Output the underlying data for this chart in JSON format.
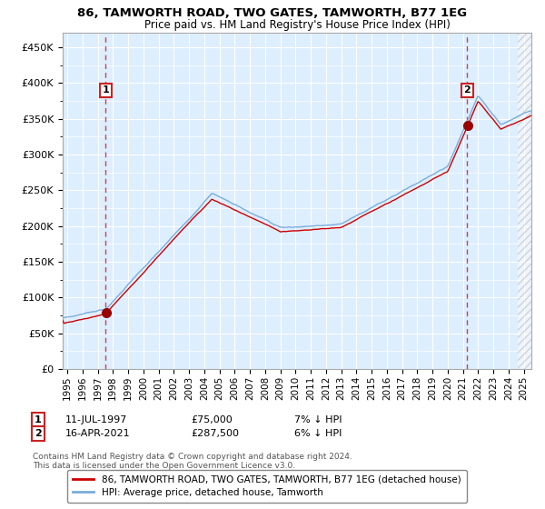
{
  "title": "86, TAMWORTH ROAD, TWO GATES, TAMWORTH, B77 1EG",
  "subtitle": "Price paid vs. HM Land Registry's House Price Index (HPI)",
  "legend_line1": "86, TAMWORTH ROAD, TWO GATES, TAMWORTH, B77 1EG (detached house)",
  "legend_line2": "HPI: Average price, detached house, Tamworth",
  "footnote1": "Contains HM Land Registry data © Crown copyright and database right 2024.",
  "footnote2": "This data is licensed under the Open Government Licence v3.0.",
  "sale1_label": "1",
  "sale1_date": "11-JUL-1997",
  "sale1_price": "£75,000",
  "sale1_hpi": "7% ↓ HPI",
  "sale1_year": 1997.53,
  "sale1_value": 75000,
  "sale2_label": "2",
  "sale2_date": "16-APR-2021",
  "sale2_price": "£287,500",
  "sale2_hpi": "6% ↓ HPI",
  "sale2_year": 2021.29,
  "sale2_value": 287500,
  "hpi_color": "#7aaddc",
  "price_color": "#cc0000",
  "marker_color": "#990000",
  "dashed_line_color": "#cc4444",
  "plot_bg": "#ddeeff",
  "grid_color": "#ffffff",
  "ylim": [
    0,
    470000
  ],
  "xlim_start": 1994.7,
  "xlim_end": 2025.5,
  "yticks": [
    0,
    50000,
    100000,
    150000,
    200000,
    250000,
    300000,
    350000,
    400000,
    450000
  ],
  "ytick_labels": [
    "£0",
    "£50K",
    "£100K",
    "£150K",
    "£200K",
    "£250K",
    "£300K",
    "£350K",
    "£400K",
    "£450K"
  ],
  "xticks": [
    1995,
    1996,
    1997,
    1998,
    1999,
    2000,
    2001,
    2002,
    2003,
    2004,
    2005,
    2006,
    2007,
    2008,
    2009,
    2010,
    2011,
    2012,
    2013,
    2014,
    2015,
    2016,
    2017,
    2018,
    2019,
    2020,
    2021,
    2022,
    2023,
    2024,
    2025
  ]
}
